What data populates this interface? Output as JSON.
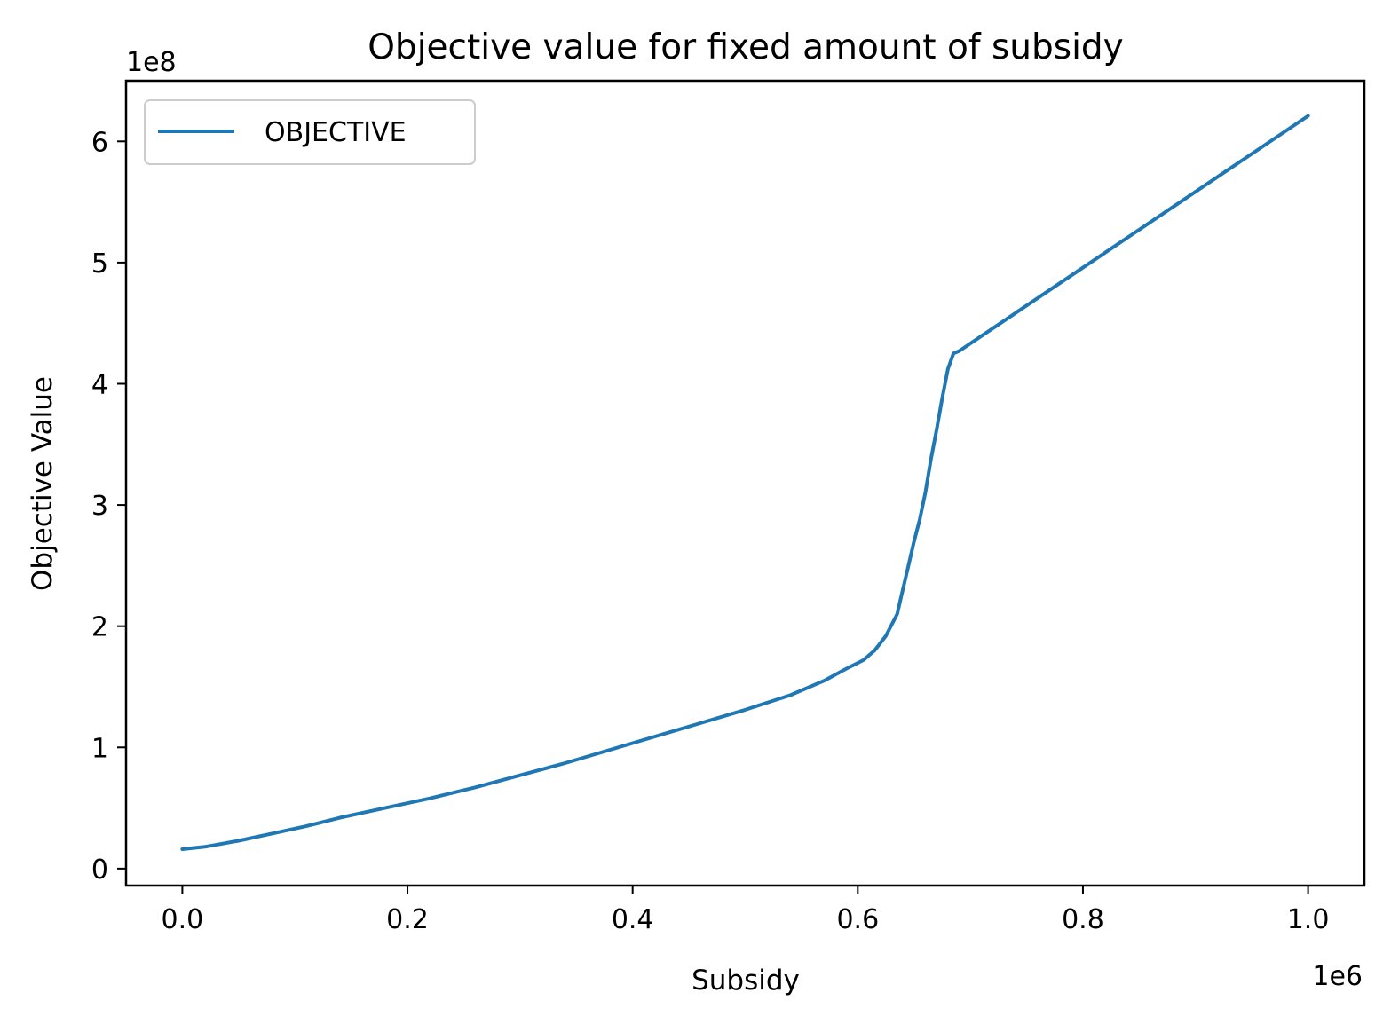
{
  "chart_data": {
    "type": "line",
    "title": "Objective value for fixed amount of subsidy",
    "xlabel": "Subsidy",
    "ylabel": "Objective Value",
    "x_multiplier_label": "1e6",
    "y_multiplier_label": "1e8",
    "xlim": [
      -0.05,
      1.05
    ],
    "ylim": [
      -0.14,
      6.5
    ],
    "x_ticks": [
      0.0,
      0.2,
      0.4,
      0.6,
      0.8,
      1.0
    ],
    "x_tick_labels": [
      "0.0",
      "0.2",
      "0.4",
      "0.6",
      "0.8",
      "1.0"
    ],
    "y_ticks": [
      0,
      1,
      2,
      3,
      4,
      5,
      6
    ],
    "y_tick_labels": [
      "0",
      "1",
      "2",
      "3",
      "4",
      "5",
      "6"
    ],
    "grid": false,
    "legend_position": "upper-left",
    "series": [
      {
        "name": "OBJECTIVE",
        "color": "#1f77b4",
        "x": [
          0.0,
          0.02,
          0.05,
          0.08,
          0.11,
          0.14,
          0.18,
          0.22,
          0.26,
          0.3,
          0.34,
          0.38,
          0.42,
          0.46,
          0.5,
          0.54,
          0.57,
          0.59,
          0.605,
          0.615,
          0.625,
          0.635,
          0.64,
          0.645,
          0.65,
          0.655,
          0.66,
          0.665,
          0.67,
          0.675,
          0.68,
          0.685,
          0.69,
          1.0
        ],
        "y": [
          0.16,
          0.18,
          0.23,
          0.29,
          0.35,
          0.42,
          0.5,
          0.58,
          0.67,
          0.77,
          0.87,
          0.98,
          1.09,
          1.2,
          1.31,
          1.43,
          1.55,
          1.65,
          1.72,
          1.8,
          1.92,
          2.1,
          2.3,
          2.5,
          2.7,
          2.88,
          3.1,
          3.38,
          3.62,
          3.88,
          4.12,
          4.25,
          4.27,
          6.21
        ]
      }
    ]
  }
}
